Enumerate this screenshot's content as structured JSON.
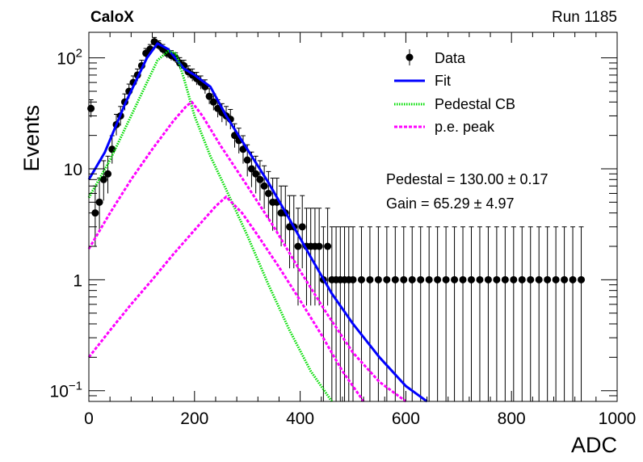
{
  "header": {
    "experiment": "CaloX",
    "run": "Run 1185"
  },
  "chart_data": {
    "type": "scatter",
    "xlabel": "ADC",
    "ylabel": "Events",
    "xlim": [
      0,
      1000
    ],
    "ylim": [
      0.08,
      170
    ],
    "yscale": "log",
    "x_ticks": [
      "0",
      "200",
      "400",
      "600",
      "800",
      "1000"
    ],
    "y_ticks": [
      {
        "value": 0.1,
        "base": "10",
        "exp": "−1"
      },
      {
        "value": 1,
        "label": "1"
      },
      {
        "value": 10,
        "label": "10"
      },
      {
        "value": 100,
        "base": "10",
        "exp": "2"
      }
    ],
    "legend": {
      "position": "top-right",
      "entries": [
        {
          "label": "Data",
          "style": "marker",
          "color": "#000000"
        },
        {
          "label": "Fit",
          "style": "solid",
          "color": "#0000ff"
        },
        {
          "label": "Pedestal CB",
          "style": "dotted",
          "color": "#00dd00"
        },
        {
          "label": "p.e. peak",
          "style": "dashed",
          "color": "#ff00ff"
        }
      ]
    },
    "annotations": {
      "pedestal": "Pedestal = 130.00 ± 0.17",
      "gain": "Gain = 65.29 ± 4.97"
    },
    "curves": {
      "fit": {
        "color": "#0000ff",
        "points": [
          [
            0,
            8
          ],
          [
            30,
            14
          ],
          [
            70,
            40
          ],
          [
            110,
            100
          ],
          [
            130,
            135
          ],
          [
            150,
            120
          ],
          [
            180,
            80
          ],
          [
            200,
            70
          ],
          [
            230,
            55
          ],
          [
            260,
            30
          ],
          [
            300,
            15
          ],
          [
            340,
            7.5
          ],
          [
            380,
            3.5
          ],
          [
            420,
            1.6
          ],
          [
            460,
            0.75
          ],
          [
            500,
            0.4
          ],
          [
            550,
            0.2
          ],
          [
            600,
            0.11
          ],
          [
            640,
            0.075
          ]
        ]
      },
      "pedestal_cb": {
        "color": "#00dd00",
        "points": [
          [
            0,
            5.5
          ],
          [
            40,
            12
          ],
          [
            80,
            30
          ],
          [
            110,
            60
          ],
          [
            130,
            95
          ],
          [
            150,
            115
          ],
          [
            165,
            110
          ],
          [
            180,
            65
          ],
          [
            200,
            30
          ],
          [
            230,
            13
          ],
          [
            260,
            6.5
          ],
          [
            300,
            2.5
          ],
          [
            340,
            0.9
          ],
          [
            380,
            0.35
          ],
          [
            420,
            0.15
          ],
          [
            460,
            0.075
          ]
        ]
      },
      "pe_peak_1": {
        "color": "#ff00ff",
        "points": [
          [
            0,
            1.9
          ],
          [
            40,
            4
          ],
          [
            80,
            8
          ],
          [
            120,
            15
          ],
          [
            160,
            27
          ],
          [
            185,
            37
          ],
          [
            195,
            40
          ],
          [
            215,
            30
          ],
          [
            250,
            16
          ],
          [
            300,
            7
          ],
          [
            350,
            3
          ],
          [
            400,
            1.2
          ],
          [
            450,
            0.5
          ],
          [
            500,
            0.22
          ],
          [
            550,
            0.12
          ],
          [
            600,
            0.075
          ]
        ]
      },
      "pe_peak_2": {
        "color": "#ff00ff",
        "points": [
          [
            0,
            0.2
          ],
          [
            40,
            0.35
          ],
          [
            80,
            0.6
          ],
          [
            120,
            1.0
          ],
          [
            160,
            1.7
          ],
          [
            200,
            2.8
          ],
          [
            240,
            4.6
          ],
          [
            260,
            5.6
          ],
          [
            290,
            4.0
          ],
          [
            320,
            2.5
          ],
          [
            360,
            1.3
          ],
          [
            400,
            0.65
          ],
          [
            440,
            0.32
          ],
          [
            480,
            0.15
          ],
          [
            520,
            0.075
          ]
        ]
      }
    },
    "series": [
      {
        "name": "Data",
        "x": [
          4,
          12,
          20,
          28,
          36,
          44,
          52,
          60,
          68,
          76,
          84,
          92,
          100,
          108,
          116,
          124,
          132,
          140,
          148,
          156,
          164,
          172,
          180,
          188,
          196,
          204,
          212,
          220,
          228,
          236,
          244,
          252,
          260,
          268,
          276,
          284,
          292,
          300,
          308,
          316,
          324,
          332,
          340,
          348,
          356,
          364,
          372,
          380,
          388,
          396,
          404,
          412,
          420,
          428,
          436,
          444,
          452,
          460,
          468,
          476,
          484,
          492,
          500,
          516,
          532,
          548,
          564,
          580,
          596,
          612,
          628,
          644,
          660,
          676,
          692,
          708,
          724,
          740,
          756,
          772,
          788,
          804,
          820,
          836,
          852,
          868,
          884,
          900,
          916,
          932
        ],
        "y": [
          35,
          4,
          5,
          8,
          9,
          15,
          25,
          30,
          40,
          50,
          60,
          70,
          85,
          110,
          120,
          140,
          130,
          120,
          110,
          105,
          100,
          90,
          85,
          75,
          70,
          65,
          60,
          55,
          45,
          40,
          35,
          32,
          30,
          28,
          20,
          18,
          15,
          12,
          10,
          9,
          8,
          7,
          6,
          5,
          5,
          4,
          4,
          3,
          3,
          2,
          3,
          2,
          2,
          2,
          2,
          1,
          2,
          1,
          1,
          1,
          1,
          1,
          1,
          1,
          1,
          1,
          1,
          1,
          1,
          1,
          1,
          1,
          1,
          1,
          1,
          1,
          1,
          1,
          1,
          1,
          1,
          1,
          1,
          1,
          1,
          1,
          1,
          1,
          1,
          1
        ]
      }
    ]
  }
}
